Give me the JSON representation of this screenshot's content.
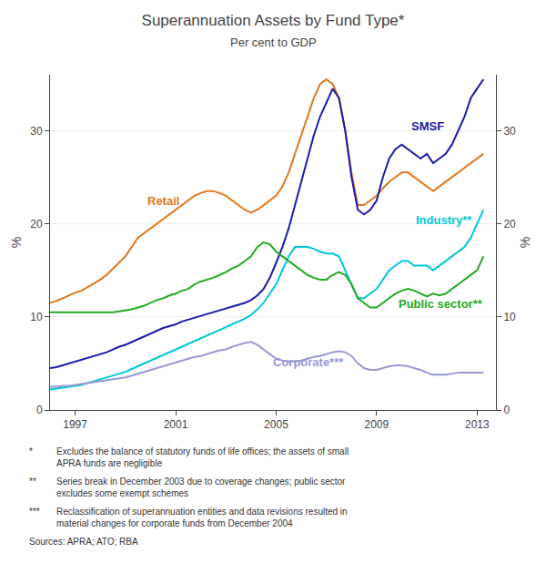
{
  "chart_data": {
    "type": "line",
    "title": "Superannuation Assets by Fund Type*",
    "subtitle": "Per cent to GDP",
    "ylabel": "%",
    "y2label": "%",
    "xlim": [
      1996.0,
      2013.75
    ],
    "xticks": [
      1997,
      2001,
      2005,
      2009,
      2013
    ],
    "ylim": [
      0,
      36
    ],
    "yticks": [
      0,
      10,
      20,
      30
    ],
    "y2lim": [
      0,
      36
    ],
    "y2ticks": [
      0,
      10,
      20,
      30
    ],
    "grid": "y",
    "x": [
      1996.0,
      1996.25,
      1996.5,
      1996.75,
      1997.0,
      1997.25,
      1997.5,
      1997.75,
      1998.0,
      1998.25,
      1998.5,
      1998.75,
      1999.0,
      1999.25,
      1999.5,
      1999.75,
      2000.0,
      2000.25,
      2000.5,
      2000.75,
      2001.0,
      2001.25,
      2001.5,
      2001.75,
      2002.0,
      2002.25,
      2002.5,
      2002.75,
      2003.0,
      2003.25,
      2003.5,
      2003.75,
      2004.0,
      2004.25,
      2004.5,
      2004.75,
      2005.0,
      2005.25,
      2005.5,
      2005.75,
      2006.0,
      2006.25,
      2006.5,
      2006.75,
      2007.0,
      2007.25,
      2007.5,
      2007.75,
      2008.0,
      2008.25,
      2008.5,
      2008.75,
      2009.0,
      2009.25,
      2009.5,
      2009.75,
      2010.0,
      2010.25,
      2010.5,
      2010.75,
      2011.0,
      2011.25,
      2011.5,
      2011.75,
      2012.0,
      2012.25,
      2012.5,
      2012.75,
      2013.0,
      2013.25
    ],
    "series": [
      {
        "name": "Retail",
        "color": "#e07820",
        "values": [
          11.5,
          11.7,
          12.0,
          12.3,
          12.6,
          12.8,
          13.2,
          13.6,
          14.0,
          14.5,
          15.2,
          15.8,
          16.5,
          17.5,
          18.5,
          19.0,
          19.5,
          20.0,
          20.5,
          21.0,
          21.5,
          22.0,
          22.5,
          23.0,
          23.3,
          23.5,
          23.5,
          23.3,
          23.0,
          22.5,
          22.0,
          21.5,
          21.2,
          21.5,
          22.0,
          22.5,
          23.0,
          24.0,
          25.5,
          27.5,
          29.5,
          31.5,
          33.5,
          35.0,
          35.5,
          35.0,
          33.5,
          30.0,
          25.5,
          22.0,
          22.0,
          22.5,
          23.0,
          23.8,
          24.5,
          25.0,
          25.5,
          25.5,
          25.0,
          24.5,
          24.0,
          23.5,
          24.0,
          24.5,
          25.0,
          25.5,
          26.0,
          26.5,
          27.0,
          27.5
        ]
      },
      {
        "name": "SMSF",
        "color": "#1a1aaa",
        "values": [
          4.5,
          4.6,
          4.8,
          5.0,
          5.2,
          5.4,
          5.6,
          5.8,
          6.0,
          6.2,
          6.5,
          6.8,
          7.0,
          7.3,
          7.6,
          7.9,
          8.2,
          8.5,
          8.8,
          9.0,
          9.2,
          9.5,
          9.7,
          9.9,
          10.1,
          10.3,
          10.5,
          10.7,
          10.9,
          11.1,
          11.3,
          11.5,
          11.8,
          12.3,
          13.0,
          14.2,
          15.8,
          17.5,
          19.5,
          22.0,
          24.5,
          27.0,
          29.5,
          31.5,
          33.0,
          34.5,
          33.5,
          30.0,
          25.0,
          21.5,
          21.0,
          21.5,
          22.5,
          25.0,
          27.0,
          28.0,
          28.5,
          28.0,
          27.5,
          27.0,
          27.5,
          26.5,
          27.0,
          27.5,
          28.5,
          30.0,
          31.5,
          33.5,
          34.5,
          35.5
        ]
      },
      {
        "name": "Industry**",
        "color": "#00c8d8",
        "values": [
          2.2,
          2.3,
          2.4,
          2.5,
          2.6,
          2.7,
          2.9,
          3.1,
          3.3,
          3.5,
          3.7,
          3.9,
          4.1,
          4.4,
          4.7,
          5.0,
          5.3,
          5.6,
          5.9,
          6.2,
          6.5,
          6.8,
          7.1,
          7.4,
          7.7,
          8.0,
          8.3,
          8.6,
          8.9,
          9.2,
          9.5,
          9.8,
          10.2,
          10.8,
          11.5,
          12.5,
          13.5,
          15.0,
          16.5,
          17.5,
          17.5,
          17.5,
          17.3,
          17.0,
          16.8,
          16.8,
          16.5,
          15.0,
          13.5,
          12.0,
          12.0,
          12.5,
          13.0,
          14.0,
          15.0,
          15.5,
          16.0,
          16.0,
          15.5,
          15.5,
          15.5,
          15.0,
          15.5,
          16.0,
          16.5,
          17.0,
          17.5,
          18.5,
          20.0,
          21.5
        ]
      },
      {
        "name": "Public sector**",
        "color": "#22aa22",
        "values": [
          10.5,
          10.5,
          10.5,
          10.5,
          10.5,
          10.5,
          10.5,
          10.5,
          10.5,
          10.5,
          10.5,
          10.6,
          10.7,
          10.8,
          11.0,
          11.2,
          11.5,
          11.8,
          12.0,
          12.3,
          12.5,
          12.8,
          13.0,
          13.5,
          13.8,
          14.0,
          14.2,
          14.5,
          14.8,
          15.2,
          15.5,
          16.0,
          16.5,
          17.5,
          18.0,
          17.8,
          17.0,
          16.5,
          16.0,
          15.5,
          15.0,
          14.5,
          14.2,
          14.0,
          14.0,
          14.5,
          14.8,
          14.5,
          13.5,
          12.0,
          11.5,
          11.0,
          11.0,
          11.5,
          12.0,
          12.5,
          12.8,
          13.0,
          12.8,
          12.5,
          12.2,
          12.5,
          12.3,
          12.5,
          13.0,
          13.5,
          14.0,
          14.5,
          15.0,
          16.5
        ]
      },
      {
        "name": "Corporate***",
        "color": "#9898d8",
        "values": [
          2.5,
          2.5,
          2.6,
          2.6,
          2.7,
          2.8,
          2.9,
          3.0,
          3.1,
          3.2,
          3.3,
          3.4,
          3.5,
          3.7,
          3.9,
          4.1,
          4.3,
          4.5,
          4.7,
          4.9,
          5.1,
          5.3,
          5.5,
          5.7,
          5.8,
          6.0,
          6.2,
          6.4,
          6.5,
          6.8,
          7.0,
          7.2,
          7.3,
          7.0,
          6.5,
          6.0,
          5.5,
          5.3,
          5.2,
          5.2,
          5.3,
          5.5,
          5.7,
          5.8,
          6.0,
          6.2,
          6.3,
          6.2,
          5.8,
          5.0,
          4.5,
          4.3,
          4.3,
          4.5,
          4.7,
          4.8,
          4.8,
          4.7,
          4.5,
          4.3,
          4.0,
          3.8,
          3.8,
          3.8,
          3.9,
          4.0,
          4.0,
          4.0,
          4.0,
          4.0
        ]
      }
    ],
    "annotations": [
      {
        "text": "SMSF",
        "x": 2010.3,
        "y": 29.5,
        "color": "#1a1aaa"
      },
      {
        "text": "Retail",
        "x": 1999.8,
        "y": 21.5,
        "color": "#e07820"
      },
      {
        "text": "Industry**",
        "x": 2010.5,
        "y": 19.5,
        "color": "#00c8d8"
      },
      {
        "text": "Public sector**",
        "x": 2009.8,
        "y": 10.5,
        "color": "#22aa22"
      },
      {
        "text": "Corporate***",
        "x": 2004.8,
        "y": 4.2,
        "color": "#9898d8"
      }
    ],
    "footnotes": [
      {
        "symbol": "*",
        "text": "Excludes the balance of statutory funds of life offices; the assets of small\nAPRA funds are negligible"
      },
      {
        "symbol": "**",
        "text": "Series break in December 2003 due to coverage changes; public sector\nexcludes some exempt schemes"
      },
      {
        "symbol": "***",
        "text": "Reclassification of superannuation entities and data revisions resulted in\nmaterial changes for corporate funds from December 2004"
      }
    ],
    "source": "Sources: APRA; ATO; RBA"
  }
}
